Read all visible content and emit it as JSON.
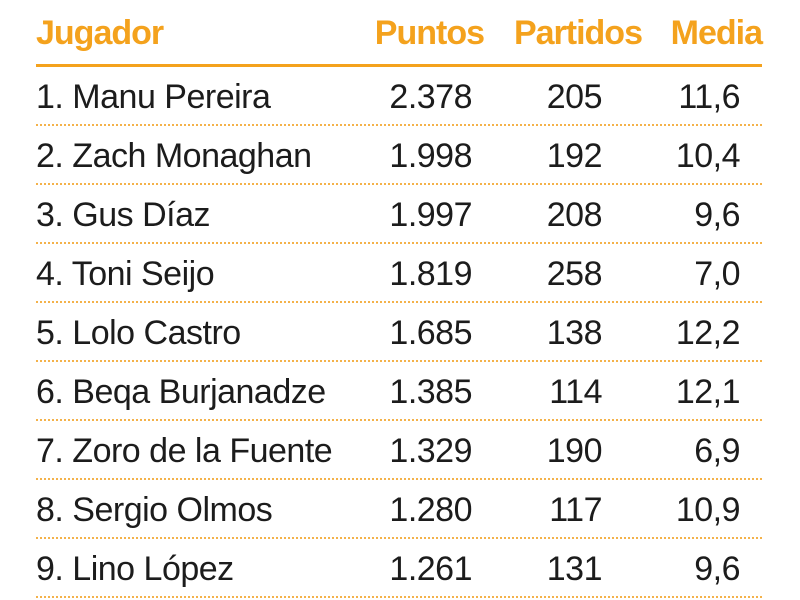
{
  "chart_data": {
    "type": "table",
    "columns": [
      "Jugador",
      "Puntos",
      "Partidos",
      "Media"
    ],
    "rows": [
      {
        "player": "1. Manu Pereira",
        "points": "2.378",
        "games": "205",
        "average": "11,6"
      },
      {
        "player": "2. Zach Monaghan",
        "points": "1.998",
        "games": "192",
        "average": "10,4"
      },
      {
        "player": "3. Gus Díaz",
        "points": "1.997",
        "games": "208",
        "average": "9,6"
      },
      {
        "player": "4. Toni Seijo",
        "points": "1.819",
        "games": "258",
        "average": "7,0"
      },
      {
        "player": "5. Lolo Castro",
        "points": "1.685",
        "games": "138",
        "average": "12,2"
      },
      {
        "player": "6. Beqa Burjanadze",
        "points": "1.385",
        "games": "114",
        "average": "12,1"
      },
      {
        "player": "7. Zoro de la Fuente",
        "points": "1.329",
        "games": "190",
        "average": "6,9"
      },
      {
        "player": "8. Sergio Olmos",
        "points": "1.280",
        "games": "117",
        "average": "10,9"
      },
      {
        "player": "9. Lino López",
        "points": "1.261",
        "games": "131",
        "average": "9,6"
      }
    ]
  },
  "colors": {
    "header_text": "#f4a21d",
    "rule": "#f4a21d",
    "dotted_divider": "#f4b24a",
    "body_text": "#1c1c1c"
  }
}
